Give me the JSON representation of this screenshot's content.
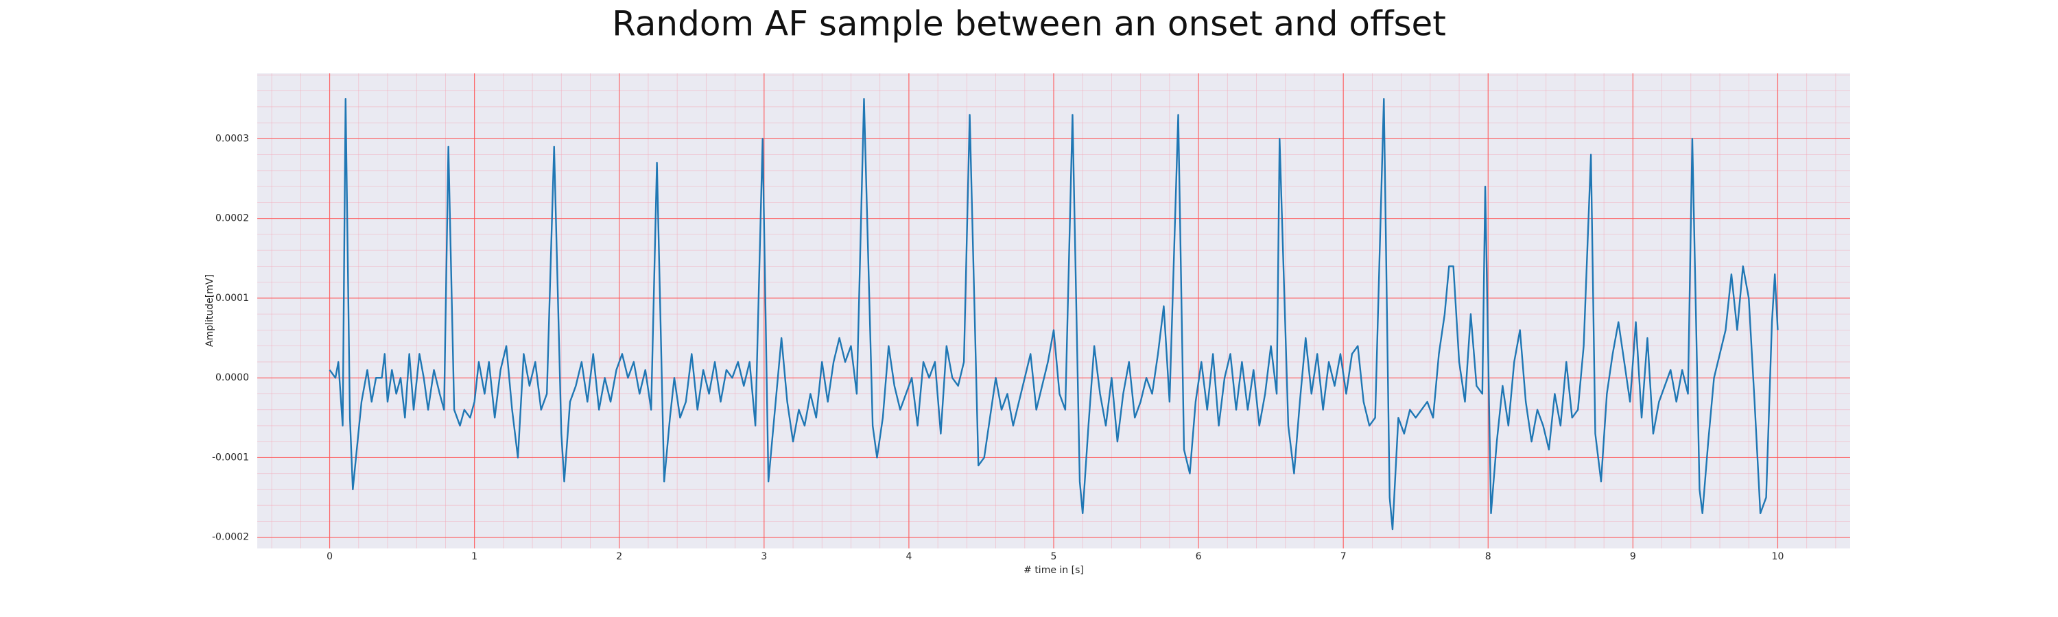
{
  "chart_data": {
    "type": "line",
    "title": "Random AF sample between an onset and offset",
    "x_label": "# time in [s]",
    "y_label": "Amplitude[mV]",
    "color": "#1f77b4",
    "grid": true,
    "minor_grid": true,
    "xlim": [
      -0.5,
      10.5
    ],
    "ylim": [
      -0.000214,
      0.000382
    ],
    "xticks": [
      0,
      1,
      2,
      3,
      4,
      5,
      6,
      7,
      8,
      9,
      10
    ],
    "yticks": [
      -0.0002,
      -0.0001,
      {
        "value": 0,
        "label": "0.0000"
      },
      0.0001,
      0.0002,
      0.0003
    ],
    "x": [
      0,
      0.04,
      0.06,
      0.09,
      0.11,
      0.14,
      0.16,
      0.22,
      0.26,
      0.29,
      0.32,
      0.36,
      0.38,
      0.4,
      0.43,
      0.46,
      0.49,
      0.52,
      0.55,
      0.58,
      0.62,
      0.65,
      0.68,
      0.72,
      0.76,
      0.79,
      0.82,
      0.86,
      0.9,
      0.93,
      0.97,
      1.0,
      1.03,
      1.07,
      1.1,
      1.14,
      1.18,
      1.22,
      1.26,
      1.3,
      1.34,
      1.38,
      1.42,
      1.46,
      1.5,
      1.55,
      1.6,
      1.62,
      1.66,
      1.7,
      1.74,
      1.78,
      1.82,
      1.86,
      1.9,
      1.94,
      1.98,
      2.02,
      2.06,
      2.1,
      2.14,
      2.18,
      2.22,
      2.26,
      2.31,
      2.35,
      2.38,
      2.42,
      2.46,
      2.5,
      2.54,
      2.58,
      2.62,
      2.66,
      2.7,
      2.74,
      2.78,
      2.82,
      2.86,
      2.9,
      2.94,
      2.99,
      3.03,
      3.07,
      3.12,
      3.16,
      3.2,
      3.24,
      3.28,
      3.32,
      3.36,
      3.4,
      3.44,
      3.48,
      3.52,
      3.56,
      3.6,
      3.64,
      3.69,
      3.75,
      3.78,
      3.82,
      3.86,
      3.9,
      3.94,
      3.98,
      4.02,
      4.06,
      4.1,
      4.14,
      4.18,
      4.22,
      4.26,
      4.3,
      4.34,
      4.38,
      4.42,
      4.48,
      4.52,
      4.56,
      4.6,
      4.64,
      4.68,
      4.72,
      4.76,
      4.8,
      4.84,
      4.88,
      4.92,
      4.96,
      5.0,
      5.04,
      5.08,
      5.13,
      5.18,
      5.2,
      5.24,
      5.28,
      5.32,
      5.36,
      5.4,
      5.44,
      5.48,
      5.52,
      5.56,
      5.6,
      5.64,
      5.68,
      5.72,
      5.76,
      5.8,
      5.86,
      5.9,
      5.94,
      5.98,
      6.02,
      6.06,
      6.1,
      6.14,
      6.18,
      6.22,
      6.26,
      6.3,
      6.34,
      6.38,
      6.42,
      6.46,
      6.5,
      6.54,
      6.56,
      6.62,
      6.66,
      6.7,
      6.74,
      6.78,
      6.82,
      6.86,
      6.9,
      6.94,
      6.98,
      7.02,
      7.06,
      7.1,
      7.14,
      7.18,
      7.22,
      7.28,
      7.32,
      7.34,
      7.38,
      7.42,
      7.46,
      7.5,
      7.54,
      7.58,
      7.62,
      7.66,
      7.7,
      7.73,
      7.76,
      7.8,
      7.84,
      7.88,
      7.92,
      7.96,
      7.98,
      8.02,
      8.06,
      8.1,
      8.14,
      8.18,
      8.22,
      8.26,
      8.3,
      8.34,
      8.38,
      8.42,
      8.46,
      8.5,
      8.54,
      8.58,
      8.62,
      8.66,
      8.71,
      8.74,
      8.78,
      8.82,
      8.86,
      8.9,
      8.94,
      8.98,
      9.02,
      9.06,
      9.1,
      9.14,
      9.18,
      9.22,
      9.26,
      9.3,
      9.34,
      9.38,
      9.41,
      9.46,
      9.48,
      9.52,
      9.56,
      9.6,
      9.64,
      9.68,
      9.72,
      9.76,
      9.8,
      9.84,
      9.88,
      9.92,
      9.96,
      9.98,
      10.0
    ],
    "values": [
      1e-05,
      0,
      2e-05,
      -6e-05,
      0.00035,
      -5e-05,
      -0.00014,
      -3e-05,
      1e-05,
      -3e-05,
      0,
      0,
      3e-05,
      -3e-05,
      1e-05,
      -2e-05,
      0,
      -5e-05,
      3e-05,
      -4e-05,
      3e-05,
      0,
      -4e-05,
      1e-05,
      -2e-05,
      -4e-05,
      0.00029,
      -4e-05,
      -6e-05,
      -4e-05,
      -5e-05,
      -3e-05,
      2e-05,
      -2e-05,
      2e-05,
      -5e-05,
      1e-05,
      4e-05,
      -4e-05,
      -0.0001,
      3e-05,
      -1e-05,
      2e-05,
      -4e-05,
      -2e-05,
      0.00029,
      -7e-05,
      -0.00013,
      -3e-05,
      -1e-05,
      2e-05,
      -3e-05,
      3e-05,
      -4e-05,
      0,
      -3e-05,
      1e-05,
      3e-05,
      0,
      2e-05,
      -2e-05,
      1e-05,
      -4e-05,
      0.00027,
      -0.00013,
      -5e-05,
      0,
      -5e-05,
      -3e-05,
      3e-05,
      -4e-05,
      1e-05,
      -2e-05,
      2e-05,
      -3e-05,
      1e-05,
      0,
      2e-05,
      -1e-05,
      2e-05,
      -6e-05,
      0.0003,
      -0.00013,
      -5e-05,
      5e-05,
      -3e-05,
      -8e-05,
      -4e-05,
      -6e-05,
      -2e-05,
      -5e-05,
      2e-05,
      -3e-05,
      2e-05,
      5e-05,
      2e-05,
      4e-05,
      -2e-05,
      0.00035,
      -6e-05,
      -0.0001,
      -5e-05,
      4e-05,
      -1e-05,
      -4e-05,
      -2e-05,
      0,
      -6e-05,
      2e-05,
      0,
      2e-05,
      -7e-05,
      4e-05,
      0,
      -1e-05,
      2e-05,
      0.00033,
      -0.00011,
      -0.0001,
      -5e-05,
      0,
      -4e-05,
      -2e-05,
      -6e-05,
      -3e-05,
      0,
      3e-05,
      -4e-05,
      -1e-05,
      2e-05,
      6e-05,
      -2e-05,
      -4e-05,
      0.00033,
      -0.00013,
      -0.00017,
      -6e-05,
      4e-05,
      -2e-05,
      -6e-05,
      0,
      -8e-05,
      -2e-05,
      2e-05,
      -5e-05,
      -3e-05,
      0,
      -2e-05,
      3e-05,
      9e-05,
      -3e-05,
      0.00033,
      -9e-05,
      -0.00012,
      -3e-05,
      2e-05,
      -4e-05,
      3e-05,
      -6e-05,
      0,
      3e-05,
      -4e-05,
      2e-05,
      -4e-05,
      1e-05,
      -6e-05,
      -2e-05,
      4e-05,
      -2e-05,
      0.0003,
      -6e-05,
      -0.00012,
      -3e-05,
      5e-05,
      -2e-05,
      3e-05,
      -4e-05,
      2e-05,
      -1e-05,
      3e-05,
      -2e-05,
      3e-05,
      4e-05,
      -3e-05,
      -6e-05,
      -5e-05,
      0.00035,
      -0.00015,
      -0.00019,
      -5e-05,
      -7e-05,
      -4e-05,
      -5e-05,
      -4e-05,
      -3e-05,
      -5e-05,
      3e-05,
      8e-05,
      0.00014,
      0.00014,
      2e-05,
      -3e-05,
      8e-05,
      -1e-05,
      -2e-05,
      0.00024,
      -0.00017,
      -8e-05,
      -1e-05,
      -6e-05,
      2e-05,
      6e-05,
      -3e-05,
      -8e-05,
      -4e-05,
      -6e-05,
      -9e-05,
      -2e-05,
      -6e-05,
      2e-05,
      -5e-05,
      -4e-05,
      4e-05,
      0.00028,
      -7e-05,
      -0.00013,
      -2e-05,
      3e-05,
      7e-05,
      2e-05,
      -3e-05,
      7e-05,
      -5e-05,
      5e-05,
      -7e-05,
      -3e-05,
      -1e-05,
      1e-05,
      -3e-05,
      1e-05,
      -2e-05,
      0.0003,
      -0.00014,
      -0.00017,
      -8e-05,
      0,
      3e-05,
      6e-05,
      0.00013,
      6e-05,
      0.00014,
      0.0001,
      -3e-05,
      -0.00017,
      -0.00015,
      7e-05,
      0.00013,
      6e-05
    ]
  }
}
